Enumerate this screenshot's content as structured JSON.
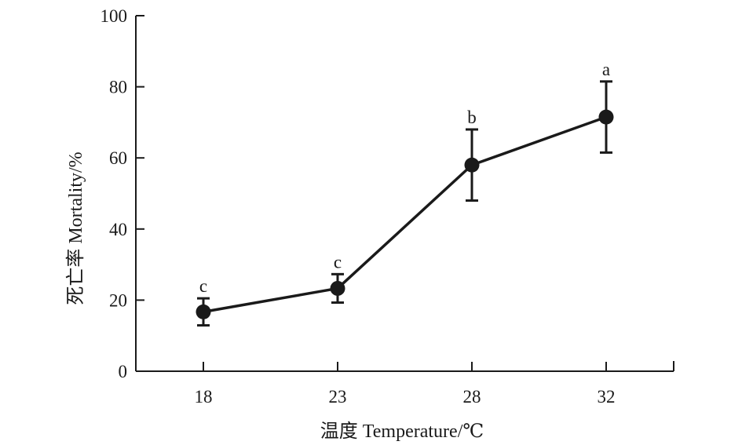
{
  "chart_data": {
    "type": "line",
    "xlabel": "温度 Temperature/℃",
    "ylabel": "死亡率 Mortality/%",
    "ylim": [
      0,
      100
    ],
    "y_ticks": [
      "0",
      "20",
      "40",
      "60",
      "80",
      "100"
    ],
    "categories": [
      "18",
      "23",
      "28",
      "32"
    ],
    "series": [
      {
        "values": [
          16.7,
          23.3,
          58.0,
          71.5
        ],
        "errors": [
          3.8,
          4.0,
          10.0,
          10.0
        ],
        "significance": [
          "c",
          "c",
          "b",
          "a"
        ],
        "color": "#1a1a1a"
      }
    ],
    "grid": false
  }
}
